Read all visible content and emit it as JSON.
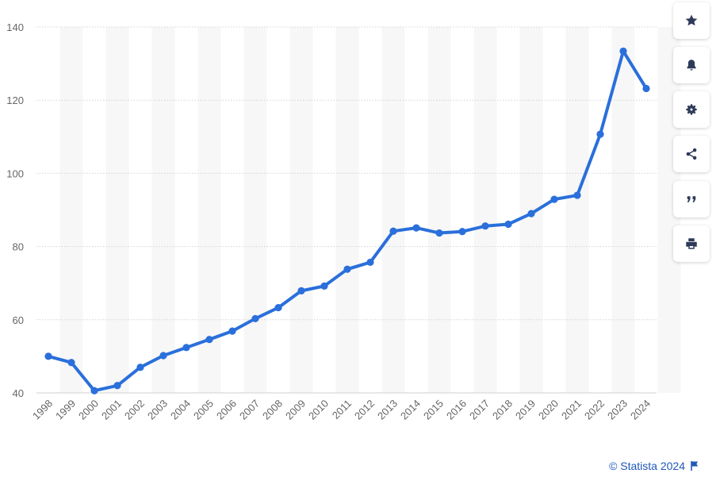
{
  "chart_data": {
    "type": "line",
    "title": "",
    "xlabel": "",
    "ylabel": "",
    "x": [
      "1998",
      "1999",
      "2000",
      "2001",
      "2002",
      "2003",
      "2004",
      "2005",
      "2006",
      "2007",
      "2008",
      "2009",
      "2010",
      "2011",
      "2012",
      "2013",
      "2014",
      "2015",
      "2016",
      "2017",
      "2018",
      "2019",
      "2020",
      "2021",
      "2022",
      "2023",
      "2024"
    ],
    "series": [
      {
        "values": [
          50,
          48.3,
          40.6,
          42,
          47,
          50.2,
          52.4,
          54.6,
          56.9,
          60.3,
          63.3,
          67.9,
          69.2,
          73.8,
          75.7,
          84.2,
          85.1,
          83.7,
          84.1,
          85.6,
          86.1,
          89,
          92.9,
          94,
          110.7,
          133.4,
          123.2
        ]
      }
    ],
    "yticks": [
      40,
      60,
      80,
      100,
      120,
      140
    ],
    "ylim": [
      40,
      140
    ],
    "grid": true,
    "line_color": "#2a6fdb"
  },
  "toolbar": {
    "buttons": [
      "star-icon",
      "bell-icon",
      "gear-icon",
      "share-icon",
      "quote-icon",
      "print-icon"
    ]
  },
  "credit": {
    "text": "© Statista 2024"
  }
}
